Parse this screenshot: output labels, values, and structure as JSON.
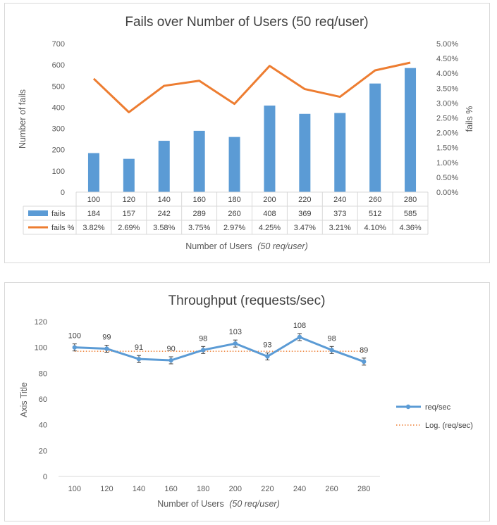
{
  "colors": {
    "bar": "#5b9bd5",
    "line": "#ed7d31",
    "grid": "#d9d9d9",
    "text": "#595959"
  },
  "chart_data": [
    {
      "type": "bar",
      "title": "Fails over Number of Users (50 req/user)",
      "xlabel": "Number of Users",
      "xlabel_note": "(50 req/user)",
      "ylabel": "Number of fails",
      "y2label": "fails %",
      "ylim": [
        0,
        700
      ],
      "y_ticks": [
        "700",
        "600",
        "500",
        "400",
        "300",
        "200",
        "100",
        "0"
      ],
      "y2lim": [
        0,
        5
      ],
      "y2_ticks": [
        "5.00%",
        "4.50%",
        "4.00%",
        "3.50%",
        "3.00%",
        "2.50%",
        "2.00%",
        "1.50%",
        "1.00%",
        "0.50%",
        "0.00%"
      ],
      "categories": [
        "100",
        "120",
        "140",
        "160",
        "180",
        "200",
        "220",
        "240",
        "260",
        "280"
      ],
      "series": [
        {
          "name": "fails",
          "type": "bar",
          "axis": "left",
          "values": [
            184,
            157,
            242,
            289,
            260,
            408,
            369,
            373,
            512,
            585
          ],
          "labels": [
            "184",
            "157",
            "242",
            "289",
            "260",
            "408",
            "369",
            "373",
            "512",
            "585"
          ]
        },
        {
          "name": "fails %",
          "type": "line",
          "axis": "right",
          "values": [
            3.82,
            2.69,
            3.58,
            3.75,
            2.97,
            4.25,
            3.47,
            3.21,
            4.1,
            4.36
          ],
          "labels": [
            "3.82%",
            "2.69%",
            "3.58%",
            "3.75%",
            "2.97%",
            "4.25%",
            "3.47%",
            "3.21%",
            "4.10%",
            "4.36%"
          ]
        }
      ],
      "data_table": true,
      "grid": false
    },
    {
      "type": "line",
      "title": "Throughput (requests/sec)",
      "xlabel": "Number of Users",
      "xlabel_note": "(50 req/user)",
      "ylabel": "Axis Title",
      "ylim": [
        0,
        120
      ],
      "y_ticks": [
        "120",
        "100",
        "80",
        "60",
        "40",
        "20",
        "0"
      ],
      "categories": [
        "100",
        "120",
        "140",
        "160",
        "180",
        "200",
        "220",
        "240",
        "260",
        "280"
      ],
      "series": [
        {
          "name": "req/sec",
          "values": [
            100,
            99,
            91,
            90,
            98,
            103,
            93,
            108,
            98,
            89
          ],
          "labels": [
            "100",
            "99",
            "91",
            "90",
            "98",
            "103",
            "93",
            "108",
            "98",
            "89"
          ],
          "error_bars": true
        },
        {
          "name": "Log. (req/sec)",
          "type": "trendline",
          "style": "dotted",
          "values": [
            97,
            97,
            97,
            97,
            97,
            97,
            97,
            97,
            97,
            97
          ]
        }
      ],
      "legend": "right",
      "grid": false
    }
  ]
}
